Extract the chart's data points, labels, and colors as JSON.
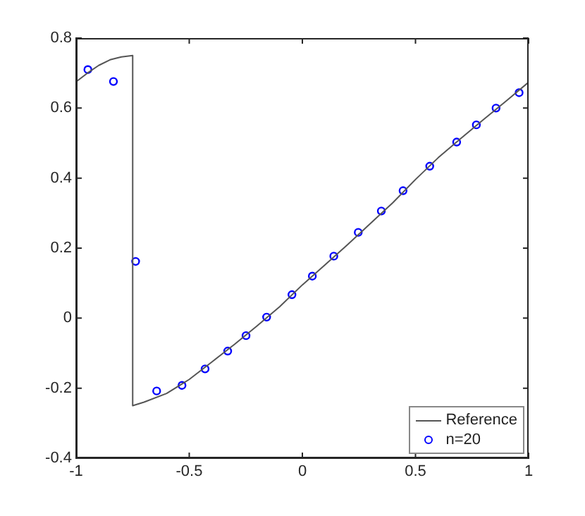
{
  "chart_data": {
    "type": "scatter",
    "xlim": [
      -1,
      1
    ],
    "ylim": [
      -0.4,
      0.8
    ],
    "xticks": [
      -1,
      -0.5,
      0,
      0.5,
      1
    ],
    "yticks": [
      -0.4,
      -0.2,
      0,
      0.2,
      0.4,
      0.6,
      0.8
    ],
    "grid": false,
    "legend": "bottom right",
    "series": [
      {
        "name": "Reference",
        "type": "line",
        "color": "#555555",
        "marker": "none",
        "line_style": "solid",
        "x": [
          -1,
          -0.95,
          -0.9,
          -0.85,
          -0.8,
          -0.75,
          -0.75,
          -0.7,
          -0.6,
          -0.5,
          -0.4,
          -0.3,
          -0.2,
          -0.1,
          0,
          0.1,
          0.2,
          0.3,
          0.4,
          0.5,
          0.6,
          0.7,
          0.8,
          0.9,
          1
        ],
        "values": [
          0.675,
          0.7,
          0.722,
          0.738,
          0.746,
          0.75,
          -0.25,
          -0.24,
          -0.215,
          -0.175,
          -0.125,
          -0.075,
          -0.022,
          0.033,
          0.095,
          0.152,
          0.21,
          0.27,
          0.33,
          0.396,
          0.458,
          0.513,
          0.567,
          0.62,
          0.674
        ]
      },
      {
        "name": "n=20",
        "type": "scatter",
        "color": "#0000ff",
        "marker": "circle",
        "x": [
          -0.948,
          -0.835,
          -0.737,
          -0.644,
          -0.532,
          -0.43,
          -0.33,
          -0.249,
          -0.158,
          -0.046,
          0.044,
          0.139,
          0.247,
          0.349,
          0.445,
          0.563,
          0.682,
          0.769,
          0.856,
          0.958
        ],
        "values": [
          0.71,
          0.676,
          0.162,
          -0.208,
          -0.192,
          -0.145,
          -0.094,
          -0.05,
          0.003,
          0.067,
          0.12,
          0.177,
          0.245,
          0.306,
          0.364,
          0.434,
          0.503,
          0.552,
          0.6,
          0.644
        ]
      }
    ]
  }
}
